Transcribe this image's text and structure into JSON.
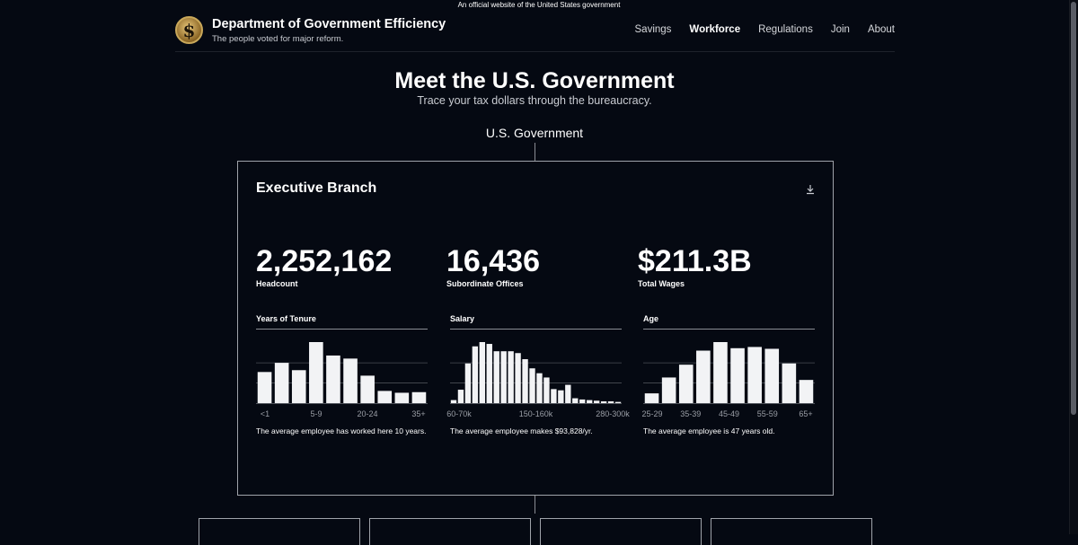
{
  "banner": "An official website of the United States government",
  "site": {
    "title": "Department of Government Efficiency",
    "tagline": "The people voted for major reform.",
    "logo_glyph": "$"
  },
  "nav": [
    {
      "label": "Savings",
      "active": false
    },
    {
      "label": "Workforce",
      "active": true
    },
    {
      "label": "Regulations",
      "active": false
    },
    {
      "label": "Join",
      "active": false
    },
    {
      "label": "About",
      "active": false
    }
  ],
  "hero": {
    "title": "Meet the U.S. Government",
    "subtitle": "Trace your tax dollars through the bureaucracy."
  },
  "tree": {
    "root_label": "U.S. Government"
  },
  "card": {
    "title": "Executive Branch",
    "download_icon": "download-icon",
    "stats": [
      {
        "value": "2,252,162",
        "label": "Headcount"
      },
      {
        "value": "16,436",
        "label": "Subordinate Offices"
      },
      {
        "value": "$211.3B",
        "label": "Total Wages"
      }
    ]
  },
  "chart_data": [
    {
      "type": "bar",
      "title": "Years of Tenure",
      "tick_labels": [
        "<1",
        "5-9",
        "20-24",
        "35+"
      ],
      "values": [
        51,
        66,
        54,
        100,
        78,
        73,
        45,
        20,
        17,
        18
      ],
      "ylim": [
        0,
        100
      ],
      "note": "The average employee has worked here 10 years."
    },
    {
      "type": "bar",
      "title": "Salary",
      "tick_labels": [
        "60-70k",
        "150-160k",
        "280-300k"
      ],
      "values": [
        5,
        22,
        65,
        93,
        100,
        97,
        85,
        85,
        85,
        82,
        72,
        57,
        49,
        42,
        23,
        21,
        30,
        8,
        6,
        5,
        4,
        3,
        3,
        2
      ],
      "ylim": [
        0,
        100
      ],
      "note": "The average employee makes $93,828/yr."
    },
    {
      "type": "bar",
      "title": "Age",
      "tick_labels": [
        "25-29",
        "35-39",
        "45-49",
        "55-59",
        "65+"
      ],
      "values": [
        16,
        42,
        63,
        86,
        100,
        90,
        92,
        89,
        65,
        38
      ],
      "ylim": [
        0,
        100
      ],
      "note": "The average employee is 47 years old."
    }
  ]
}
